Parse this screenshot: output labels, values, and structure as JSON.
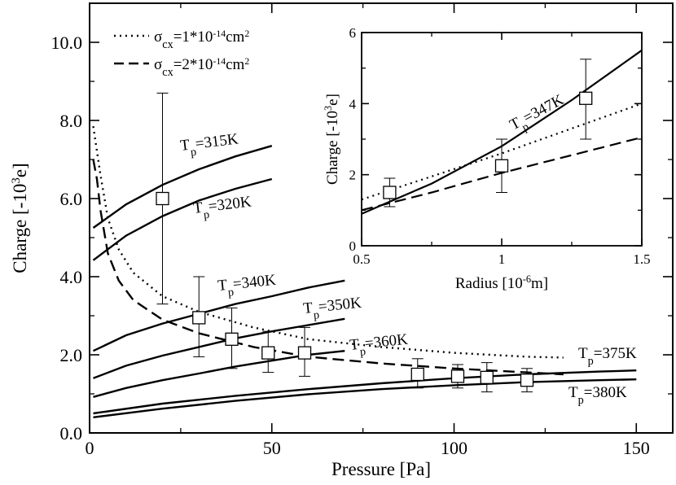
{
  "chart_data": [
    {
      "id": "main",
      "type": "line",
      "xlabel": "Pressure [Pa]",
      "ylabel": "Charge [-10³e]",
      "xlim": [
        0,
        160
      ],
      "ylim": [
        0,
        11
      ],
      "xticks": [
        0,
        50,
        100,
        150
      ],
      "xtick_labels": [
        "0",
        "50",
        "100",
        "150"
      ],
      "yticks": [
        0,
        2,
        4,
        6,
        8,
        10
      ],
      "ytick_labels": [
        "0.0",
        "2.0",
        "4.0",
        "6.0",
        "8.0",
        "10.0"
      ],
      "legend": {
        "position": "top-left",
        "entries": [
          {
            "style": "dotted",
            "label": "σcx=1*10⁻¹⁴cm²"
          },
          {
            "style": "dashed",
            "label": "σcx=2*10⁻¹⁴cm²"
          }
        ]
      },
      "series": [
        {
          "name": "Tp=315K",
          "label": "Tp=315K",
          "style": "solid",
          "x": [
            1,
            10,
            20,
            30,
            40,
            50
          ],
          "y": [
            5.25,
            5.85,
            6.35,
            6.75,
            7.08,
            7.35
          ]
        },
        {
          "name": "Tp=320K",
          "label": "Tp=320K",
          "style": "solid",
          "x": [
            1,
            10,
            20,
            30,
            40,
            50
          ],
          "y": [
            4.42,
            5.05,
            5.55,
            5.95,
            6.25,
            6.5
          ]
        },
        {
          "name": "Tp=340K",
          "label": "Tp=340K",
          "style": "solid",
          "x": [
            1,
            10,
            20,
            30,
            40,
            50,
            60,
            70
          ],
          "y": [
            2.1,
            2.5,
            2.8,
            3.05,
            3.3,
            3.5,
            3.72,
            3.9
          ]
        },
        {
          "name": "Tp=350K",
          "label": "Tp=350K",
          "style": "solid",
          "x": [
            1,
            10,
            20,
            30,
            40,
            50,
            60,
            70
          ],
          "y": [
            1.4,
            1.72,
            1.98,
            2.2,
            2.42,
            2.6,
            2.76,
            2.92
          ]
        },
        {
          "name": "Tp=360K",
          "label": "Tp=360K",
          "style": "solid",
          "x": [
            1,
            10,
            20,
            30,
            40,
            50,
            60,
            70
          ],
          "y": [
            0.92,
            1.15,
            1.35,
            1.52,
            1.7,
            1.85,
            2.0,
            2.1
          ]
        },
        {
          "name": "Tp=375K",
          "label": "Tp=375K",
          "style": "solid",
          "x": [
            1,
            20,
            40,
            60,
            80,
            100,
            120,
            140,
            150
          ],
          "y": [
            0.5,
            0.75,
            0.95,
            1.12,
            1.27,
            1.4,
            1.5,
            1.57,
            1.6
          ]
        },
        {
          "name": "Tp=380K",
          "label": "Tp=380K",
          "style": "solid",
          "x": [
            1,
            20,
            40,
            60,
            80,
            100,
            120,
            140,
            150
          ],
          "y": [
            0.4,
            0.62,
            0.82,
            0.99,
            1.12,
            1.22,
            1.3,
            1.35,
            1.37
          ]
        },
        {
          "name": "sigma-1e-14",
          "label": "",
          "style": "dotted",
          "x": [
            1,
            3,
            5,
            8,
            12,
            20,
            30,
            45,
            60,
            80,
            100,
            120,
            130
          ],
          "y": [
            7.85,
            6.6,
            5.5,
            4.7,
            4.1,
            3.5,
            3.1,
            2.7,
            2.4,
            2.2,
            2.05,
            1.95,
            1.93
          ]
        },
        {
          "name": "sigma-2e-14",
          "label": "",
          "style": "dashed",
          "x": [
            1,
            2,
            3,
            5,
            8,
            12,
            20,
            30,
            45,
            60,
            80,
            100,
            120,
            130
          ],
          "y": [
            7.0,
            6.5,
            5.7,
            4.6,
            3.9,
            3.4,
            2.9,
            2.55,
            2.2,
            1.95,
            1.78,
            1.65,
            1.55,
            1.5
          ]
        }
      ],
      "points": [
        {
          "x": 20,
          "y": 6.0,
          "err_low": 3.3,
          "err_high": 8.7
        },
        {
          "x": 30,
          "y": 2.95,
          "err_low": 1.95,
          "err_high": 4.0
        },
        {
          "x": 39,
          "y": 2.4,
          "err_low": 1.65,
          "err_high": 3.2
        },
        {
          "x": 49,
          "y": 2.05,
          "err_low": 1.55,
          "err_high": 2.6
        },
        {
          "x": 59,
          "y": 2.05,
          "err_low": 1.45,
          "err_high": 2.7
        },
        {
          "x": 90,
          "y": 1.5,
          "err_low": 1.15,
          "err_high": 1.9
        },
        {
          "x": 101,
          "y": 1.45,
          "err_low": 1.15,
          "err_high": 1.75
        },
        {
          "x": 109,
          "y": 1.42,
          "err_low": 1.05,
          "err_high": 1.8
        },
        {
          "x": 120,
          "y": 1.35,
          "err_low": 1.05,
          "err_high": 1.65
        }
      ]
    },
    {
      "id": "inset",
      "type": "line",
      "xlabel": "Radius [10⁻⁶m]",
      "ylabel": "Charge [-10³e]",
      "xlim": [
        0.5,
        1.5
      ],
      "ylim": [
        0,
        6
      ],
      "xticks": [
        0.5,
        1.0,
        1.5
      ],
      "xtick_labels": [
        "0.5",
        "1",
        "1.5"
      ],
      "yticks": [
        0,
        2,
        4,
        6
      ],
      "ytick_labels": [
        "0",
        "2",
        "4",
        "6"
      ],
      "series": [
        {
          "name": "Tp=347K",
          "label": "Tp=347K",
          "style": "solid",
          "x": [
            0.5,
            0.75,
            1.0,
            1.25,
            1.5
          ],
          "y": [
            0.9,
            1.75,
            2.8,
            4.1,
            5.5
          ]
        },
        {
          "name": "sigma-1e-14",
          "label": "",
          "style": "dotted",
          "x": [
            0.5,
            0.75,
            1.0,
            1.25,
            1.5
          ],
          "y": [
            1.3,
            1.95,
            2.6,
            3.3,
            4.0
          ]
        },
        {
          "name": "sigma-2e-14",
          "label": "",
          "style": "dashed",
          "x": [
            0.5,
            0.75,
            1.0,
            1.25,
            1.5
          ],
          "y": [
            1.0,
            1.5,
            2.05,
            2.55,
            3.05
          ]
        }
      ],
      "points": [
        {
          "x": 0.6,
          "y": 1.5,
          "err_low": 1.1,
          "err_high": 1.9
        },
        {
          "x": 1.0,
          "y": 2.25,
          "err_low": 1.5,
          "err_high": 3.0
        },
        {
          "x": 1.3,
          "y": 4.15,
          "err_low": 3.0,
          "err_high": 5.25
        }
      ]
    }
  ]
}
